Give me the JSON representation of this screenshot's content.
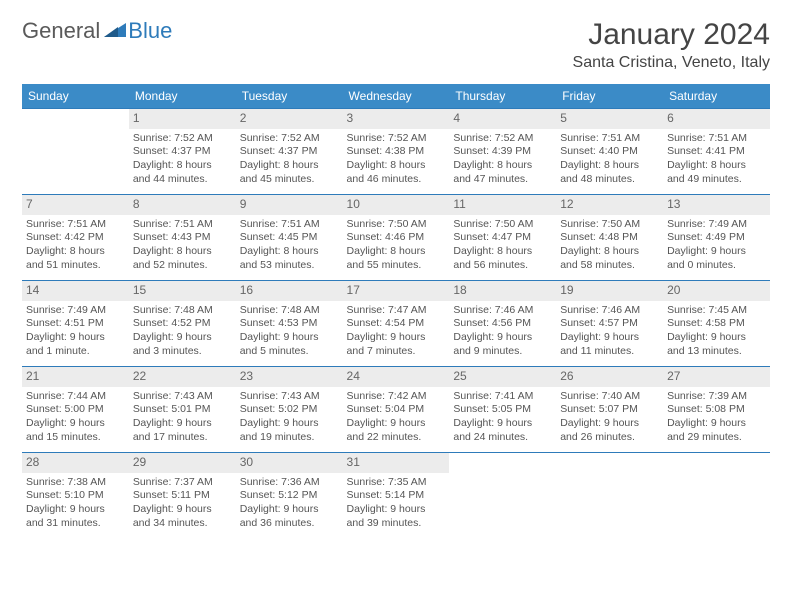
{
  "brand": {
    "part1": "General",
    "part2": "Blue"
  },
  "title": "January 2024",
  "location": "Santa Cristina, Veneto, Italy",
  "colors": {
    "header_bg": "#3b8bc7",
    "header_fg": "#ffffff",
    "cell_border": "#2e7bba",
    "daynum_bg": "#ececec",
    "text": "#555555",
    "brand_blue": "#2e7bba",
    "brand_gray": "#5a5a5a",
    "page_bg": "#ffffff"
  },
  "day_headers": [
    "Sunday",
    "Monday",
    "Tuesday",
    "Wednesday",
    "Thursday",
    "Friday",
    "Saturday"
  ],
  "weeks": [
    [
      null,
      {
        "n": "1",
        "sr": "Sunrise: 7:52 AM",
        "ss": "Sunset: 4:37 PM",
        "d1": "Daylight: 8 hours",
        "d2": "and 44 minutes."
      },
      {
        "n": "2",
        "sr": "Sunrise: 7:52 AM",
        "ss": "Sunset: 4:37 PM",
        "d1": "Daylight: 8 hours",
        "d2": "and 45 minutes."
      },
      {
        "n": "3",
        "sr": "Sunrise: 7:52 AM",
        "ss": "Sunset: 4:38 PM",
        "d1": "Daylight: 8 hours",
        "d2": "and 46 minutes."
      },
      {
        "n": "4",
        "sr": "Sunrise: 7:52 AM",
        "ss": "Sunset: 4:39 PM",
        "d1": "Daylight: 8 hours",
        "d2": "and 47 minutes."
      },
      {
        "n": "5",
        "sr": "Sunrise: 7:51 AM",
        "ss": "Sunset: 4:40 PM",
        "d1": "Daylight: 8 hours",
        "d2": "and 48 minutes."
      },
      {
        "n": "6",
        "sr": "Sunrise: 7:51 AM",
        "ss": "Sunset: 4:41 PM",
        "d1": "Daylight: 8 hours",
        "d2": "and 49 minutes."
      }
    ],
    [
      {
        "n": "7",
        "sr": "Sunrise: 7:51 AM",
        "ss": "Sunset: 4:42 PM",
        "d1": "Daylight: 8 hours",
        "d2": "and 51 minutes."
      },
      {
        "n": "8",
        "sr": "Sunrise: 7:51 AM",
        "ss": "Sunset: 4:43 PM",
        "d1": "Daylight: 8 hours",
        "d2": "and 52 minutes."
      },
      {
        "n": "9",
        "sr": "Sunrise: 7:51 AM",
        "ss": "Sunset: 4:45 PM",
        "d1": "Daylight: 8 hours",
        "d2": "and 53 minutes."
      },
      {
        "n": "10",
        "sr": "Sunrise: 7:50 AM",
        "ss": "Sunset: 4:46 PM",
        "d1": "Daylight: 8 hours",
        "d2": "and 55 minutes."
      },
      {
        "n": "11",
        "sr": "Sunrise: 7:50 AM",
        "ss": "Sunset: 4:47 PM",
        "d1": "Daylight: 8 hours",
        "d2": "and 56 minutes."
      },
      {
        "n": "12",
        "sr": "Sunrise: 7:50 AM",
        "ss": "Sunset: 4:48 PM",
        "d1": "Daylight: 8 hours",
        "d2": "and 58 minutes."
      },
      {
        "n": "13",
        "sr": "Sunrise: 7:49 AM",
        "ss": "Sunset: 4:49 PM",
        "d1": "Daylight: 9 hours",
        "d2": "and 0 minutes."
      }
    ],
    [
      {
        "n": "14",
        "sr": "Sunrise: 7:49 AM",
        "ss": "Sunset: 4:51 PM",
        "d1": "Daylight: 9 hours",
        "d2": "and 1 minute."
      },
      {
        "n": "15",
        "sr": "Sunrise: 7:48 AM",
        "ss": "Sunset: 4:52 PM",
        "d1": "Daylight: 9 hours",
        "d2": "and 3 minutes."
      },
      {
        "n": "16",
        "sr": "Sunrise: 7:48 AM",
        "ss": "Sunset: 4:53 PM",
        "d1": "Daylight: 9 hours",
        "d2": "and 5 minutes."
      },
      {
        "n": "17",
        "sr": "Sunrise: 7:47 AM",
        "ss": "Sunset: 4:54 PM",
        "d1": "Daylight: 9 hours",
        "d2": "and 7 minutes."
      },
      {
        "n": "18",
        "sr": "Sunrise: 7:46 AM",
        "ss": "Sunset: 4:56 PM",
        "d1": "Daylight: 9 hours",
        "d2": "and 9 minutes."
      },
      {
        "n": "19",
        "sr": "Sunrise: 7:46 AM",
        "ss": "Sunset: 4:57 PM",
        "d1": "Daylight: 9 hours",
        "d2": "and 11 minutes."
      },
      {
        "n": "20",
        "sr": "Sunrise: 7:45 AM",
        "ss": "Sunset: 4:58 PM",
        "d1": "Daylight: 9 hours",
        "d2": "and 13 minutes."
      }
    ],
    [
      {
        "n": "21",
        "sr": "Sunrise: 7:44 AM",
        "ss": "Sunset: 5:00 PM",
        "d1": "Daylight: 9 hours",
        "d2": "and 15 minutes."
      },
      {
        "n": "22",
        "sr": "Sunrise: 7:43 AM",
        "ss": "Sunset: 5:01 PM",
        "d1": "Daylight: 9 hours",
        "d2": "and 17 minutes."
      },
      {
        "n": "23",
        "sr": "Sunrise: 7:43 AM",
        "ss": "Sunset: 5:02 PM",
        "d1": "Daylight: 9 hours",
        "d2": "and 19 minutes."
      },
      {
        "n": "24",
        "sr": "Sunrise: 7:42 AM",
        "ss": "Sunset: 5:04 PM",
        "d1": "Daylight: 9 hours",
        "d2": "and 22 minutes."
      },
      {
        "n": "25",
        "sr": "Sunrise: 7:41 AM",
        "ss": "Sunset: 5:05 PM",
        "d1": "Daylight: 9 hours",
        "d2": "and 24 minutes."
      },
      {
        "n": "26",
        "sr": "Sunrise: 7:40 AM",
        "ss": "Sunset: 5:07 PM",
        "d1": "Daylight: 9 hours",
        "d2": "and 26 minutes."
      },
      {
        "n": "27",
        "sr": "Sunrise: 7:39 AM",
        "ss": "Sunset: 5:08 PM",
        "d1": "Daylight: 9 hours",
        "d2": "and 29 minutes."
      }
    ],
    [
      {
        "n": "28",
        "sr": "Sunrise: 7:38 AM",
        "ss": "Sunset: 5:10 PM",
        "d1": "Daylight: 9 hours",
        "d2": "and 31 minutes."
      },
      {
        "n": "29",
        "sr": "Sunrise: 7:37 AM",
        "ss": "Sunset: 5:11 PM",
        "d1": "Daylight: 9 hours",
        "d2": "and 34 minutes."
      },
      {
        "n": "30",
        "sr": "Sunrise: 7:36 AM",
        "ss": "Sunset: 5:12 PM",
        "d1": "Daylight: 9 hours",
        "d2": "and 36 minutes."
      },
      {
        "n": "31",
        "sr": "Sunrise: 7:35 AM",
        "ss": "Sunset: 5:14 PM",
        "d1": "Daylight: 9 hours",
        "d2": "and 39 minutes."
      },
      null,
      null,
      null
    ]
  ]
}
